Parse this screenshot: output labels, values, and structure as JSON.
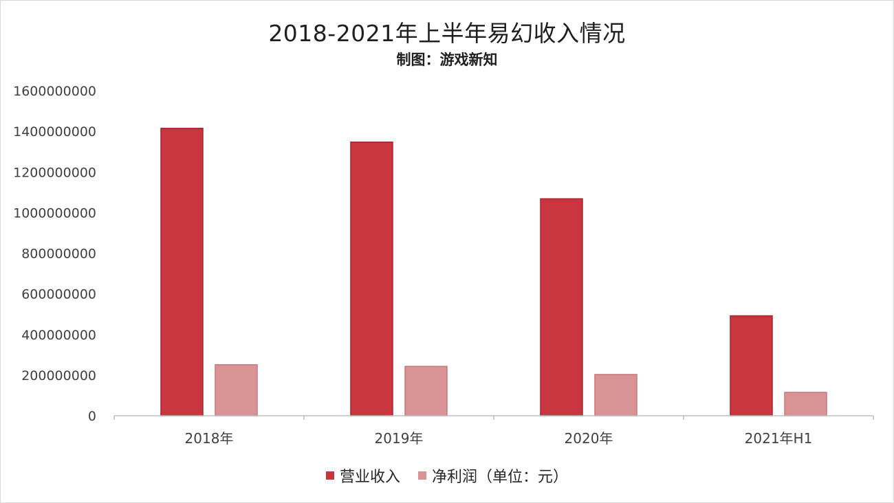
{
  "chart_data": {
    "type": "bar",
    "title": "2018-2021年上半年易幻收入情况",
    "subtitle": "制图：游戏新知",
    "categories": [
      "2018年",
      "2019年",
      "2020年",
      "2021年H1"
    ],
    "series": [
      {
        "name": "营业收入",
        "values": [
          1415000000,
          1347000000,
          1068000000,
          492000000
        ],
        "color": "#c9363f",
        "stroke": "#a8232b"
      },
      {
        "name": "净利润（单位：元）",
        "values": [
          251000000,
          243000000,
          203000000,
          115000000
        ],
        "color": "#d99394",
        "stroke": "#c7787a"
      }
    ],
    "yticks": [
      "0",
      "200000000",
      "400000000",
      "600000000",
      "800000000",
      "1000000000",
      "1200000000",
      "1400000000",
      "1600000000"
    ],
    "ylim": [
      0,
      1600000000
    ],
    "grid": false,
    "legend": "bottom"
  }
}
